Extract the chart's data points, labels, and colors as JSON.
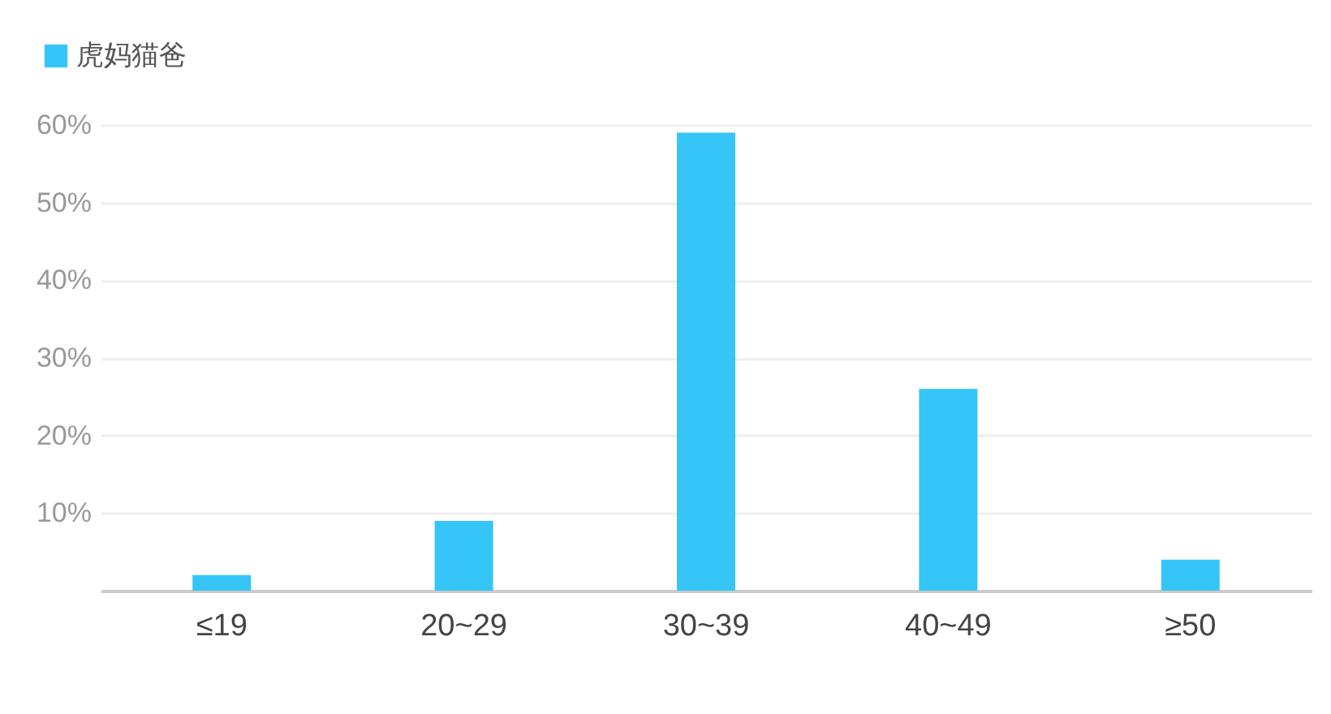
{
  "chart_data": {
    "type": "bar",
    "categories": [
      "≤19",
      "20~29",
      "30~39",
      "40~49",
      "≥50"
    ],
    "series": [
      {
        "name": "虎妈猫爸",
        "color": "#35c5f7",
        "values": [
          2,
          9,
          59,
          26,
          4
        ]
      }
    ],
    "ylim": [
      0,
      60
    ],
    "yticks": [
      {
        "value": 0,
        "label": null
      },
      {
        "value": 10,
        "label": "10%"
      },
      {
        "value": 20,
        "label": "20%"
      },
      {
        "value": 30,
        "label": "30%"
      },
      {
        "value": 40,
        "label": "40%"
      },
      {
        "value": 50,
        "label": "50%"
      },
      {
        "value": 60,
        "label": "60%"
      }
    ],
    "grid": "y",
    "legend": "top left"
  }
}
